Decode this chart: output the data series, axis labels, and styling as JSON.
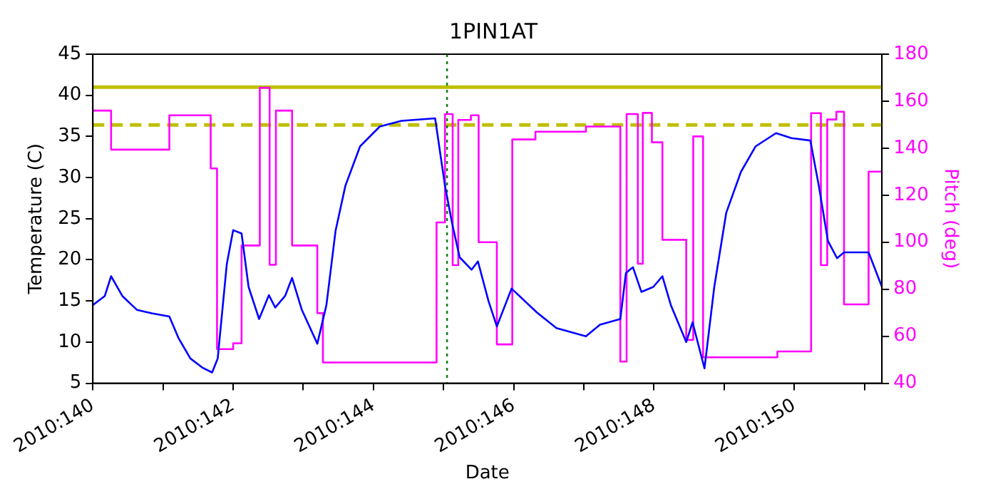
{
  "chart_data": {
    "type": "line",
    "title": "1PIN1AT",
    "xlabel": "Date",
    "ylabel": "Temperature (C)",
    "y2label": "Pitch (deg)",
    "xlim": [
      "2010-05-20",
      "2010-05-31T06:00"
    ],
    "xticks": [
      {
        "value": "2010-05-20",
        "label": "2010:140"
      },
      {
        "value": "2010-05-21",
        "label": null
      },
      {
        "value": "2010-05-22",
        "label": "2010:142"
      },
      {
        "value": "2010-05-23",
        "label": null
      },
      {
        "value": "2010-05-24",
        "label": "2010:144"
      },
      {
        "value": "2010-05-25",
        "label": null
      },
      {
        "value": "2010-05-26",
        "label": "2010:146"
      },
      {
        "value": "2010-05-27",
        "label": null
      },
      {
        "value": "2010-05-28",
        "label": "2010:148"
      },
      {
        "value": "2010-05-29",
        "label": null
      },
      {
        "value": "2010-05-30",
        "label": "2010:150"
      },
      {
        "value": "2010-05-31",
        "label": null
      }
    ],
    "ylim": [
      5,
      45
    ],
    "yticks": [
      5,
      10,
      15,
      20,
      25,
      30,
      35,
      40,
      45
    ],
    "y2lim": [
      40,
      180
    ],
    "y2ticks": [
      40,
      60,
      80,
      100,
      120,
      140,
      160,
      180
    ],
    "grid": false,
    "legend": false,
    "ref_lines": [
      {
        "axis": "y",
        "value": 41,
        "color": "#bfbf00",
        "line_style": "solid"
      },
      {
        "axis": "y",
        "value": 36.4,
        "color": "#bfbf00",
        "line_style": "dashed"
      },
      {
        "axis": "x",
        "value": "2010-05-25T01:12",
        "color": "#008000",
        "line_style": "dotted"
      }
    ],
    "series": [
      {
        "color": "#0000ff",
        "x": [
          "2010-05-20T00:00",
          "2010-05-20T04:05",
          "2010-05-20T06:14",
          "2010-05-20T10:05",
          "2010-05-20T15:07",
          "2010-05-20T20:10",
          "2010-05-21T02:10",
          "2010-05-21T05:17",
          "2010-05-21T09:22",
          "2010-05-21T13:26",
          "2010-05-21T16:48",
          "2010-05-21T18:43",
          "2010-05-21T21:50",
          "2010-05-22T00:00",
          "2010-05-22T02:53",
          "2010-05-22T05:17",
          "2010-05-22T08:53",
          "2010-05-22T12:14",
          "2010-05-22T14:24",
          "2010-05-22T17:46",
          "2010-05-22T20:10",
          "2010-05-22T23:31",
          "2010-05-23T04:48",
          "2010-05-23T07:55",
          "2010-05-23T11:02",
          "2010-05-23T14:24",
          "2010-05-23T19:26",
          "2010-05-24T02:10",
          "2010-05-24T09:36",
          "2010-05-24T21:07",
          "2010-05-25T00:29",
          "2010-05-25T02:53",
          "2010-05-25T05:31",
          "2010-05-25T09:36",
          "2010-05-25T11:46",
          "2010-05-25T15:22",
          "2010-05-25T18:14",
          "2010-05-25T23:17",
          "2010-05-26T07:55",
          "2010-05-26T14:38",
          "2010-05-27T00:43",
          "2010-05-27T05:31",
          "2010-05-27T12:29",
          "2010-05-27T14:24",
          "2010-05-27T16:48",
          "2010-05-27T19:41",
          "2010-05-27T23:46",
          "2010-05-28T02:53",
          "2010-05-28T05:46",
          "2010-05-28T11:02",
          "2010-05-28T13:12",
          "2010-05-28T17:17",
          "2010-05-28T20:38",
          "2010-05-29T00:43",
          "2010-05-29T05:46",
          "2010-05-29T10:48",
          "2010-05-29T17:46",
          "2010-05-29T23:02",
          "2010-05-30T05:31",
          "2010-05-30T08:24",
          "2010-05-30T11:31",
          "2010-05-30T14:38",
          "2010-05-30T17:02",
          "2010-05-31T01:26",
          "2010-05-31T06:00"
        ],
        "values": [
          14.5,
          15.6,
          18.0,
          15.6,
          13.9,
          13.5,
          13.1,
          10.5,
          8.0,
          6.9,
          6.3,
          8.0,
          19.5,
          23.6,
          23.2,
          16.7,
          12.8,
          15.7,
          14.2,
          15.6,
          17.8,
          13.9,
          9.8,
          14.5,
          23.5,
          29.0,
          33.8,
          36.2,
          36.9,
          37.2,
          29.0,
          24.5,
          20.3,
          18.8,
          19.8,
          15.0,
          11.9,
          16.5,
          13.6,
          11.7,
          10.7,
          12.1,
          12.8,
          18.4,
          19.1,
          16.1,
          16.7,
          18.0,
          14.5,
          10.0,
          12.4,
          6.8,
          16.7,
          25.7,
          30.7,
          33.8,
          35.4,
          34.8,
          34.5,
          29.0,
          22.3,
          20.2,
          20.9,
          20.9,
          16.7
        ]
      },
      {
        "type": "step",
        "axis": "y2",
        "color": "#ff00ff",
        "x": [
          "2010-05-20T00:00",
          "2010-05-20T06:14",
          "2010-05-21T02:10",
          "2010-05-21T16:19",
          "2010-05-21T18:29",
          "2010-05-22T00:00",
          "2010-05-22T02:53",
          "2010-05-22T09:07",
          "2010-05-22T12:29",
          "2010-05-22T14:38",
          "2010-05-22T20:10",
          "2010-05-23T04:48",
          "2010-05-23T06:43",
          "2010-05-24T21:36",
          "2010-05-25T00:29",
          "2010-05-25T03:07",
          "2010-05-25T05:02",
          "2010-05-25T09:22",
          "2010-05-25T12:00",
          "2010-05-25T18:14",
          "2010-05-25T23:31",
          "2010-05-26T07:26",
          "2010-05-27T00:43",
          "2010-05-27T12:29",
          "2010-05-27T14:38",
          "2010-05-27T18:29",
          "2010-05-27T20:10",
          "2010-05-27T23:17",
          "2010-05-28T02:53",
          "2010-05-28T11:02",
          "2010-05-28T13:26",
          "2010-05-28T16:48",
          "2010-05-29T18:14",
          "2010-05-30T05:46",
          "2010-05-30T09:07",
          "2010-05-30T11:17",
          "2010-05-30T14:24",
          "2010-05-30T17:02",
          "2010-05-31T01:26",
          "2010-05-31T06:00"
        ],
        "values": [
          156,
          139.4,
          154,
          131.4,
          54.5,
          57,
          98.6,
          165.7,
          90.4,
          156,
          98.6,
          69.8,
          48.8,
          108.4,
          154.5,
          90.2,
          152,
          154,
          100,
          56.5,
          143.7,
          147,
          149.2,
          49.2,
          154.5,
          90.8,
          155,
          142.5,
          101,
          58.4,
          145,
          51,
          53.5,
          154.9,
          90.2,
          152.2,
          155.5,
          73.5,
          130,
          130
        ]
      }
    ]
  }
}
